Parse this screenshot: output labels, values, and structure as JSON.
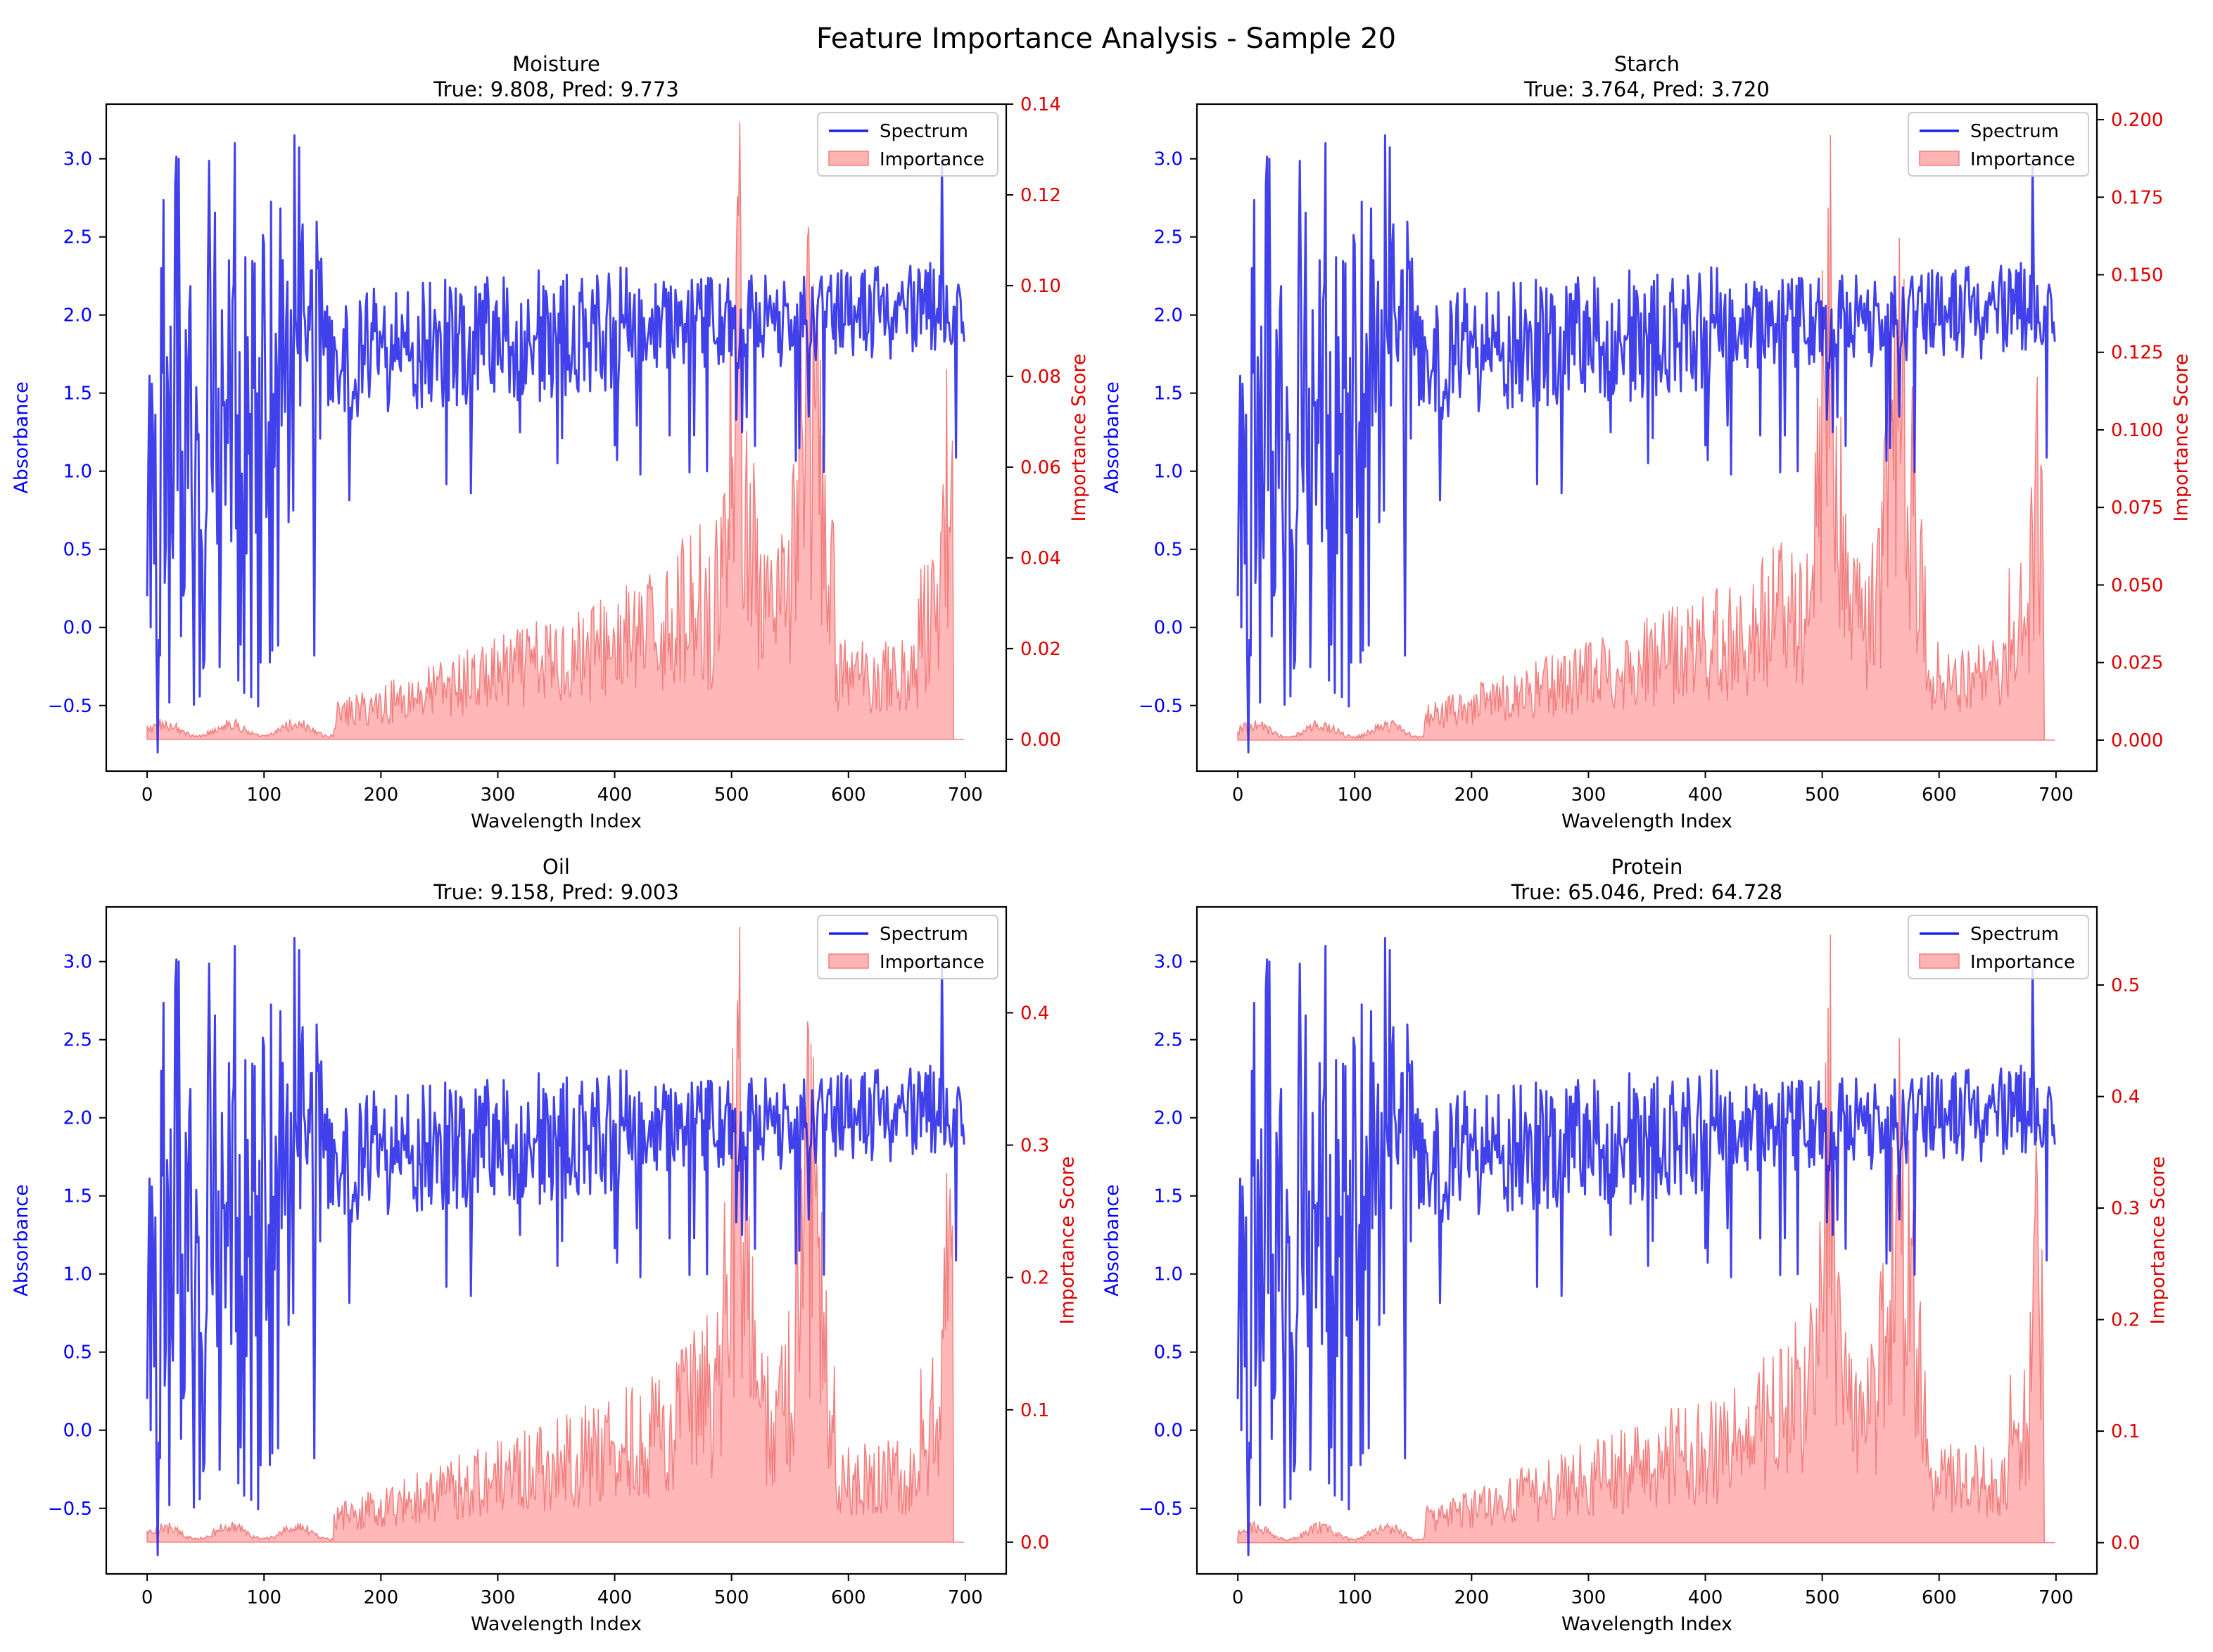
{
  "figure_title": "Feature Importance Analysis - Sample 20",
  "colors": {
    "spectrum": "#2020e8",
    "importance_fill": "#ffb3b3",
    "importance_line": "#f08080",
    "left_axis": "#0000ff",
    "right_axis": "#dd0000",
    "axes": "#000000",
    "background": "#ffffff"
  },
  "chart_data": [
    {
      "type": "line+area",
      "title": "Moisture",
      "subtitle": "True: 9.808, Pred: 9.773",
      "xlabel": "Wavelength Index",
      "ylabel_left": "Absorbance",
      "ylabel_right": "Importance Score",
      "xlim": [
        -35,
        735
      ],
      "xticks": [
        0,
        100,
        200,
        300,
        400,
        500,
        600,
        700
      ],
      "ylim_left": [
        -0.92,
        3.35
      ],
      "yticks_left": [
        -0.5,
        0.0,
        0.5,
        1.0,
        1.5,
        2.0,
        2.5,
        3.0
      ],
      "ylim_right": [
        -0.007,
        0.14
      ],
      "yticks_right": [
        0.0,
        0.02,
        0.04,
        0.06,
        0.08,
        0.1,
        0.12,
        0.14
      ],
      "importance_max": 0.136,
      "legend": [
        "Spectrum",
        "Importance"
      ],
      "legend_loc": "upper right",
      "n_points": 700
    },
    {
      "type": "line+area",
      "title": "Starch",
      "subtitle": "True: 3.764, Pred: 3.720",
      "xlabel": "Wavelength Index",
      "ylabel_left": "Absorbance",
      "ylabel_right": "Importance Score",
      "xlim": [
        -35,
        735
      ],
      "xticks": [
        0,
        100,
        200,
        300,
        400,
        500,
        600,
        700
      ],
      "ylim_left": [
        -0.92,
        3.35
      ],
      "yticks_left": [
        -0.5,
        0.0,
        0.5,
        1.0,
        1.5,
        2.0,
        2.5,
        3.0
      ],
      "ylim_right": [
        -0.01,
        0.205
      ],
      "yticks_right": [
        0.0,
        0.025,
        0.05,
        0.075,
        0.1,
        0.125,
        0.15,
        0.175,
        0.2
      ],
      "importance_max": 0.195,
      "legend": [
        "Spectrum",
        "Importance"
      ],
      "legend_loc": "upper right",
      "n_points": 700
    },
    {
      "type": "line+area",
      "title": "Oil",
      "subtitle": "True: 9.158, Pred: 9.003",
      "xlabel": "Wavelength Index",
      "ylabel_left": "Absorbance",
      "ylabel_right": "Importance Score",
      "xlim": [
        -35,
        735
      ],
      "xticks": [
        0,
        100,
        200,
        300,
        400,
        500,
        600,
        700
      ],
      "ylim_left": [
        -0.92,
        3.35
      ],
      "yticks_left": [
        -0.5,
        0.0,
        0.5,
        1.0,
        1.5,
        2.0,
        2.5,
        3.0
      ],
      "ylim_right": [
        -0.024,
        0.48
      ],
      "yticks_right": [
        0.0,
        0.1,
        0.2,
        0.3,
        0.4
      ],
      "importance_max": 0.465,
      "legend": [
        "Spectrum",
        "Importance"
      ],
      "legend_loc": "upper right",
      "n_points": 700
    },
    {
      "type": "line+area",
      "title": "Protein",
      "subtitle": "True: 65.046, Pred: 64.728",
      "xlabel": "Wavelength Index",
      "ylabel_left": "Absorbance",
      "ylabel_right": "Importance Score",
      "xlim": [
        -35,
        735
      ],
      "xticks": [
        0,
        100,
        200,
        300,
        400,
        500,
        600,
        700
      ],
      "ylim_left": [
        -0.92,
        3.35
      ],
      "yticks_left": [
        -0.5,
        0.0,
        0.5,
        1.0,
        1.5,
        2.0,
        2.5,
        3.0
      ],
      "ylim_right": [
        -0.028,
        0.57
      ],
      "yticks_right": [
        0.0,
        0.1,
        0.2,
        0.3,
        0.4,
        0.5
      ],
      "importance_max": 0.545,
      "legend": [
        "Spectrum",
        "Importance"
      ],
      "legend_loc": "upper right",
      "n_points": 700
    }
  ]
}
